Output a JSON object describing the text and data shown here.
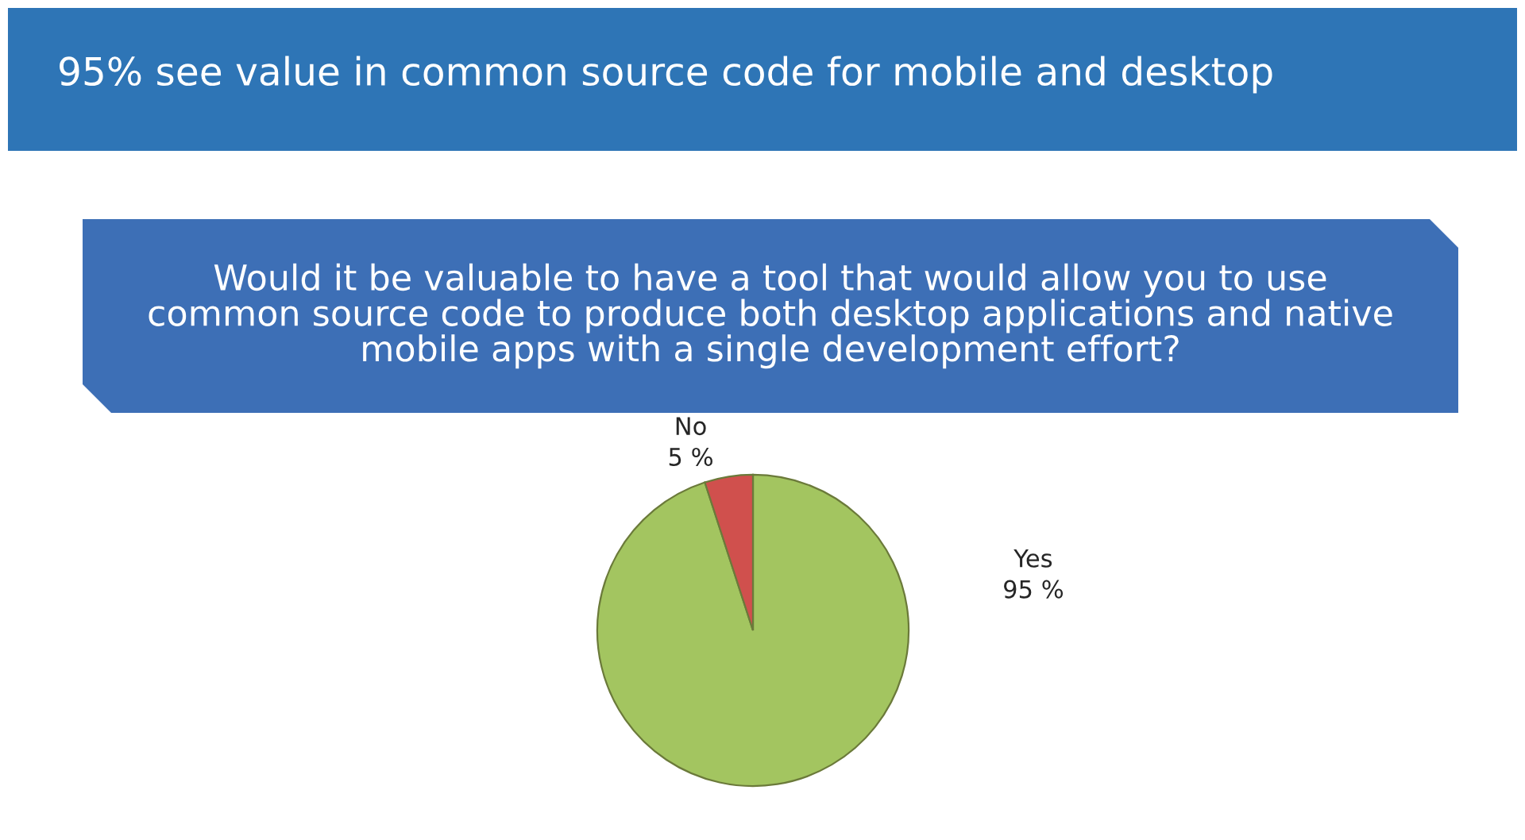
{
  "chart_data": {
    "type": "pie",
    "title": "95% see value in common source code for mobile and desktop",
    "subtitle": "Would it be valuable to have a tool that would allow you to use common source code to produce both desktop applications and native mobile apps with a single development effort?",
    "categories": [
      "Yes",
      "No"
    ],
    "values": [
      95,
      5
    ],
    "colors": [
      "#a3c560",
      "#d0504d"
    ],
    "value_labels": [
      "95 %",
      "5 %"
    ]
  }
}
